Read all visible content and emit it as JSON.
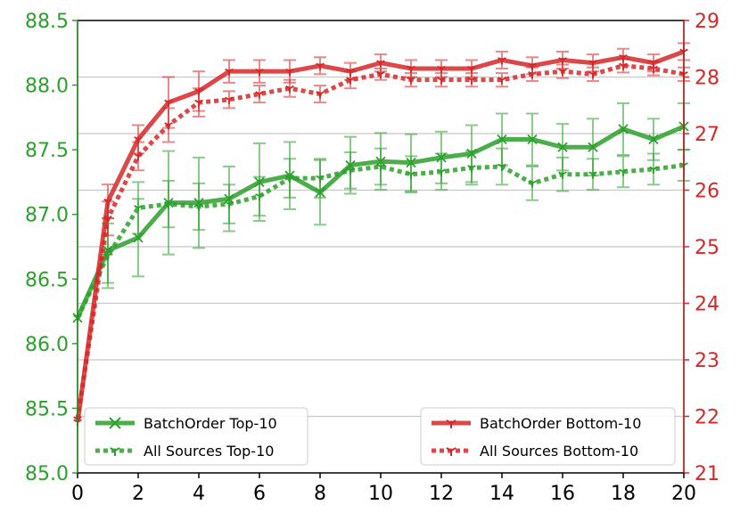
{
  "chart_data": {
    "type": "line",
    "x": [
      0,
      1,
      2,
      3,
      4,
      5,
      6,
      7,
      8,
      9,
      10,
      11,
      12,
      13,
      14,
      15,
      16,
      17,
      18,
      19,
      20
    ],
    "xlim": [
      0,
      20
    ],
    "xticks": [
      "0",
      "2",
      "4",
      "6",
      "8",
      "10",
      "12",
      "14",
      "16",
      "18",
      "20"
    ],
    "left_axis": {
      "ylim": [
        85.0,
        88.5
      ],
      "ticks": [
        "85.0",
        "85.5",
        "86.0",
        "86.5",
        "87.0",
        "87.5",
        "88.0",
        "88.5"
      ],
      "color": "#2ca02c"
    },
    "right_axis": {
      "ylim": [
        21,
        29
      ],
      "ticks": [
        "21",
        "22",
        "23",
        "24",
        "25",
        "26",
        "27",
        "28",
        "29"
      ],
      "color": "#d62728"
    },
    "grid": "horizontal lines at right-axis ticks",
    "series": [
      {
        "name": "BatchOrder Top-10",
        "axis": "left",
        "color": "#2ca02c",
        "style": "solid",
        "marker": "x",
        "values": [
          86.2,
          86.72,
          86.82,
          87.09,
          87.09,
          87.12,
          87.25,
          87.3,
          87.17,
          87.38,
          87.41,
          87.4,
          87.44,
          87.47,
          87.58,
          87.58,
          87.52,
          87.52,
          87.66,
          87.58,
          87.68
        ],
        "err": [
          0,
          0.25,
          0.3,
          0.4,
          0.35,
          0.25,
          0.3,
          0.26,
          0.25,
          0.22,
          0.22,
          0.22,
          0.2,
          0.22,
          0.2,
          0.2,
          0.18,
          0.22,
          0.2,
          0.16,
          0.18
        ]
      },
      {
        "name": "All Sources Top-10",
        "axis": "left",
        "color": "#2ca02c",
        "style": "dotted",
        "marker": "tri_down",
        "values": [
          86.2,
          86.68,
          87.05,
          87.08,
          87.06,
          87.08,
          87.14,
          87.28,
          87.28,
          87.34,
          87.37,
          87.31,
          87.33,
          87.36,
          87.37,
          87.24,
          87.31,
          87.31,
          87.33,
          87.35,
          87.38
        ],
        "err": [
          0,
          0.25,
          0.2,
          0.18,
          0.18,
          0.15,
          0.15,
          0.15,
          0.15,
          0.14,
          0.14,
          0.14,
          0.14,
          0.13,
          0.14,
          0.13,
          0.13,
          0.12,
          0.12,
          0.12,
          0.12
        ]
      },
      {
        "name": "BatchOrder Bottom-10",
        "axis": "right",
        "color": "#d62728",
        "style": "solid",
        "marker": "tri_down",
        "values": [
          21.9,
          25.8,
          26.9,
          27.55,
          27.75,
          28.1,
          28.1,
          28.1,
          28.2,
          28.1,
          28.25,
          28.15,
          28.15,
          28.15,
          28.3,
          28.2,
          28.3,
          28.25,
          28.35,
          28.25,
          28.45
        ],
        "err": [
          0,
          0.3,
          0.25,
          0.45,
          0.35,
          0.2,
          0.2,
          0.2,
          0.15,
          0.15,
          0.15,
          0.15,
          0.15,
          0.15,
          0.15,
          0.15,
          0.15,
          0.15,
          0.15,
          0.15,
          0.15
        ]
      },
      {
        "name": "All Sources Bottom-10",
        "axis": "right",
        "color": "#d62728",
        "style": "dotted",
        "marker": "tri_down",
        "values": [
          21.95,
          25.5,
          26.6,
          27.15,
          27.55,
          27.6,
          27.7,
          27.8,
          27.7,
          27.95,
          28.05,
          27.95,
          27.95,
          27.95,
          27.95,
          28.05,
          28.1,
          28.05,
          28.2,
          28.15,
          28.05
        ],
        "err": [
          0,
          0.3,
          0.25,
          0.3,
          0.25,
          0.15,
          0.15,
          0.15,
          0.15,
          0.15,
          0.1,
          0.12,
          0.12,
          0.12,
          0.12,
          0.12,
          0.12,
          0.12,
          0.12,
          0.12,
          0.12
        ]
      }
    ],
    "legends": [
      {
        "placement": "lower-left",
        "entries": [
          "BatchOrder Top-10",
          "All Sources Top-10"
        ]
      },
      {
        "placement": "lower-right",
        "entries": [
          "BatchOrder Bottom-10",
          "All Sources Bottom-10"
        ]
      }
    ]
  }
}
